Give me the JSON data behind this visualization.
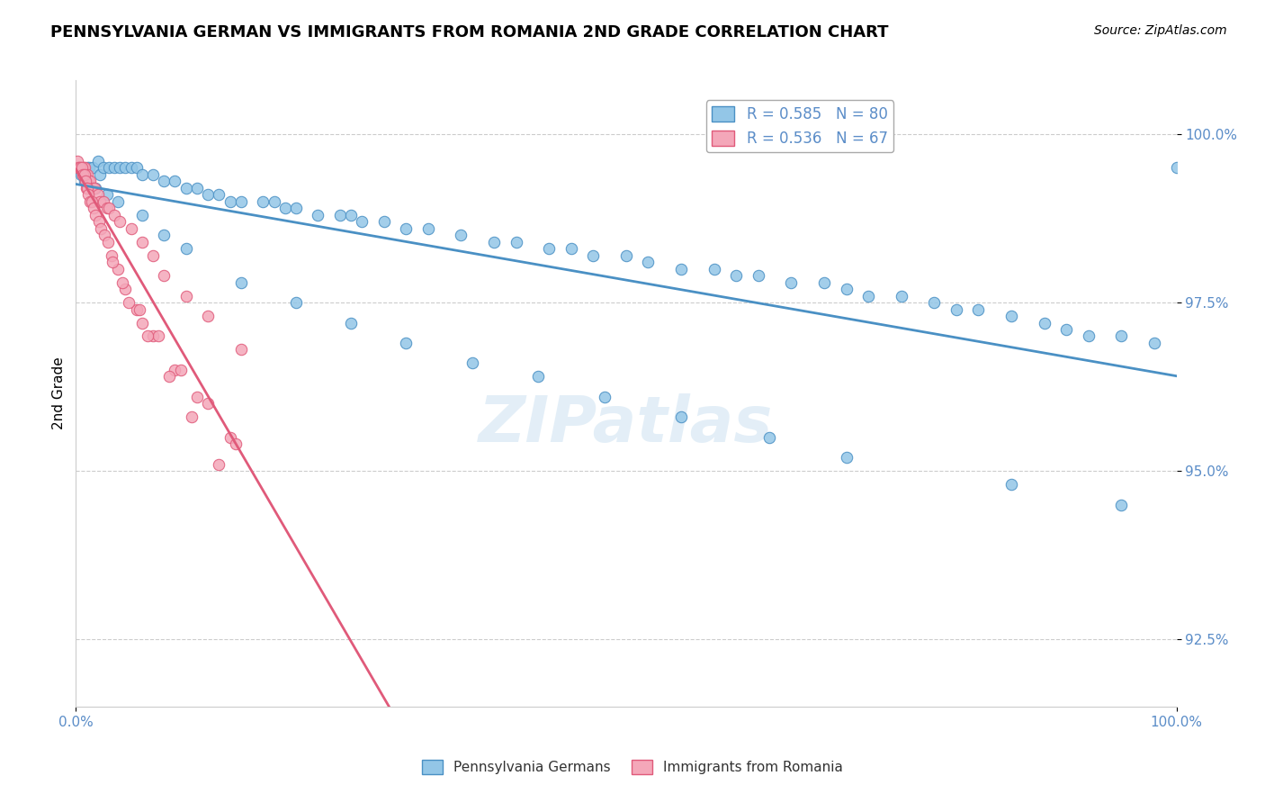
{
  "title": "PENNSYLVANIA GERMAN VS IMMIGRANTS FROM ROMANIA 2ND GRADE CORRELATION CHART",
  "source": "Source: ZipAtlas.com",
  "ylabel": "2nd Grade",
  "xlabel": "",
  "xlim": [
    0.0,
    100.0
  ],
  "ylim": [
    91.5,
    100.8
  ],
  "yticks": [
    92.5,
    95.0,
    97.5,
    100.0
  ],
  "ytick_labels": [
    "92.5%",
    "95.0%",
    "97.5%",
    "100.0%"
  ],
  "xtick_labels": [
    "0.0%",
    "100.0%"
  ],
  "blue_color": "#93C6E7",
  "pink_color": "#F4A7B9",
  "blue_line_color": "#4A90C4",
  "pink_line_color": "#E05A7A",
  "legend_R_blue": "R = 0.585",
  "legend_N_blue": "N = 80",
  "legend_R_pink": "R = 0.536",
  "legend_N_pink": "N = 67",
  "legend_label_blue": "Pennsylvania Germans",
  "legend_label_pink": "Immigrants from Romania",
  "watermark": "ZIPatlas",
  "blue_x": [
    0.5,
    1.0,
    1.2,
    1.5,
    2.0,
    2.2,
    2.5,
    3.0,
    3.5,
    4.0,
    4.5,
    5.0,
    5.5,
    6.0,
    7.0,
    8.0,
    9.0,
    10.0,
    11.0,
    12.0,
    13.0,
    14.0,
    15.0,
    17.0,
    18.0,
    19.0,
    20.0,
    22.0,
    24.0,
    25.0,
    26.0,
    28.0,
    30.0,
    32.0,
    35.0,
    38.0,
    40.0,
    43.0,
    45.0,
    47.0,
    50.0,
    52.0,
    55.0,
    58.0,
    60.0,
    62.0,
    65.0,
    68.0,
    70.0,
    72.0,
    75.0,
    78.0,
    80.0,
    82.0,
    85.0,
    88.0,
    90.0,
    92.0,
    95.0,
    98.0,
    100.0,
    0.8,
    1.8,
    2.8,
    3.8,
    6.0,
    8.0,
    10.0,
    15.0,
    20.0,
    25.0,
    30.0,
    36.0,
    42.0,
    48.0,
    55.0,
    63.0,
    70.0,
    85.0,
    95.0
  ],
  "blue_y": [
    99.4,
    99.5,
    99.5,
    99.5,
    99.6,
    99.4,
    99.5,
    99.5,
    99.5,
    99.5,
    99.5,
    99.5,
    99.5,
    99.4,
    99.4,
    99.3,
    99.3,
    99.2,
    99.2,
    99.1,
    99.1,
    99.0,
    99.0,
    99.0,
    99.0,
    98.9,
    98.9,
    98.8,
    98.8,
    98.8,
    98.7,
    98.7,
    98.6,
    98.6,
    98.5,
    98.4,
    98.4,
    98.3,
    98.3,
    98.2,
    98.2,
    98.1,
    98.0,
    98.0,
    97.9,
    97.9,
    97.8,
    97.8,
    97.7,
    97.6,
    97.6,
    97.5,
    97.4,
    97.4,
    97.3,
    97.2,
    97.1,
    97.0,
    97.0,
    96.9,
    99.5,
    99.3,
    99.2,
    99.1,
    99.0,
    98.8,
    98.5,
    98.3,
    97.8,
    97.5,
    97.2,
    96.9,
    96.6,
    96.4,
    96.1,
    95.8,
    95.5,
    95.2,
    94.8,
    94.5
  ],
  "pink_x": [
    0.2,
    0.3,
    0.4,
    0.5,
    0.6,
    0.7,
    0.8,
    0.9,
    1.0,
    1.1,
    1.2,
    1.3,
    1.5,
    1.7,
    2.0,
    2.2,
    2.5,
    2.8,
    3.0,
    3.5,
    4.0,
    5.0,
    6.0,
    7.0,
    8.0,
    10.0,
    12.0,
    15.0,
    0.15,
    0.25,
    0.35,
    0.55,
    0.65,
    0.75,
    0.85,
    0.95,
    1.05,
    1.15,
    1.25,
    1.45,
    1.6,
    1.8,
    2.1,
    2.3,
    2.6,
    2.9,
    3.2,
    3.8,
    4.5,
    5.5,
    7.0,
    9.0,
    11.0,
    14.0,
    3.3,
    4.2,
    5.8,
    7.5,
    9.5,
    12.0,
    14.5,
    4.8,
    6.5,
    8.5,
    10.5,
    13.0,
    6.0
  ],
  "pink_y": [
    99.5,
    99.5,
    99.5,
    99.5,
    99.4,
    99.5,
    99.5,
    99.4,
    99.4,
    99.3,
    99.3,
    99.3,
    99.2,
    99.2,
    99.1,
    99.0,
    99.0,
    98.9,
    98.9,
    98.8,
    98.7,
    98.6,
    98.4,
    98.2,
    97.9,
    97.6,
    97.3,
    96.8,
    99.6,
    99.5,
    99.5,
    99.5,
    99.4,
    99.4,
    99.3,
    99.2,
    99.2,
    99.1,
    99.0,
    99.0,
    98.9,
    98.8,
    98.7,
    98.6,
    98.5,
    98.4,
    98.2,
    98.0,
    97.7,
    97.4,
    97.0,
    96.5,
    96.1,
    95.5,
    98.1,
    97.8,
    97.4,
    97.0,
    96.5,
    96.0,
    95.4,
    97.5,
    97.0,
    96.4,
    95.8,
    95.1,
    97.2
  ]
}
